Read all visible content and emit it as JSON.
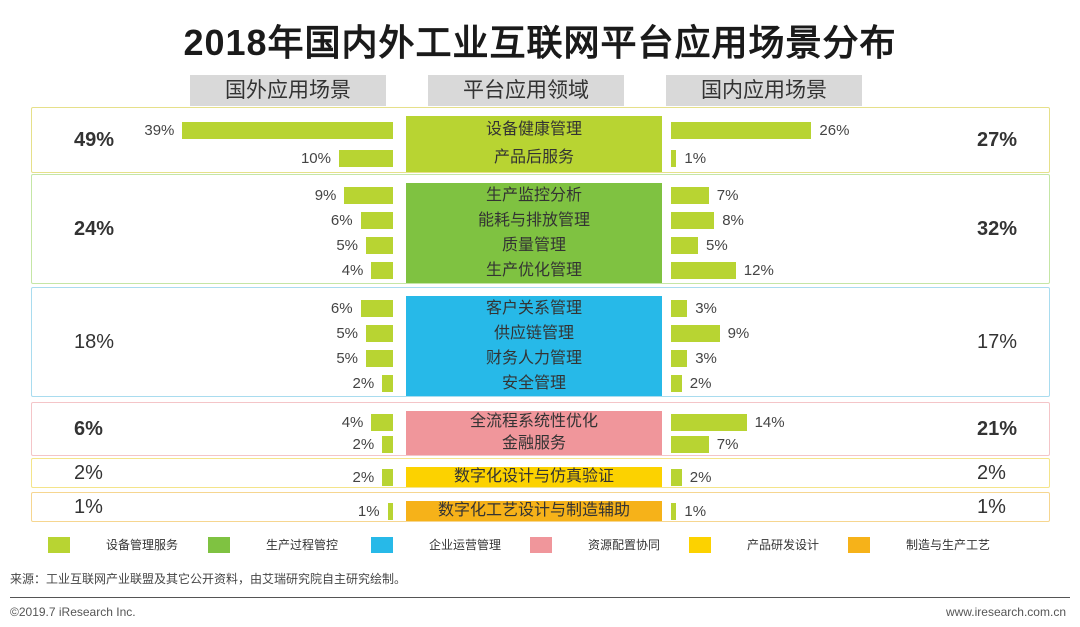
{
  "title": "2018年国内外工业互联网平台应用场景分布",
  "headers": {
    "left": "国外应用场景",
    "center": "平台应用领域",
    "right": "国内应用场景"
  },
  "legend": [
    {
      "label": "设备管理服务",
      "color": "#b8d432"
    },
    {
      "label": "生产过程管控",
      "color": "#7fc241"
    },
    {
      "label": "企业运营管理",
      "color": "#27b9e8"
    },
    {
      "label": "资源配置协同",
      "color": "#f0969b"
    },
    {
      "label": "产品研发设计",
      "color": "#fcd200"
    },
    {
      "label": "制造与生产工艺",
      "color": "#f6b219"
    }
  ],
  "chart_data": {
    "type": "bar",
    "title": "2018年国内外工业互联网平台应用场景分布",
    "bar_color": "#b8d432",
    "groups": [
      {
        "name": "设备管理服务",
        "foreign_total": "49%",
        "domestic_total": "27%",
        "color": "#b8d432",
        "border": "#e6e08a",
        "items": [
          {
            "label": "设备健康管理",
            "foreign": 39,
            "domestic": 26
          },
          {
            "label": "产品后服务",
            "foreign": 10,
            "domestic": 1
          }
        ]
      },
      {
        "name": "生产过程管控",
        "foreign_total": "24%",
        "domestic_total": "32%",
        "color": "#7fc241",
        "border": "#c5e6a6",
        "items": [
          {
            "label": "生产监控分析",
            "foreign": 9,
            "domestic": 7
          },
          {
            "label": "能耗与排放管理",
            "foreign": 6,
            "domestic": 8
          },
          {
            "label": "质量管理",
            "foreign": 5,
            "domestic": 5
          },
          {
            "label": "生产优化管理",
            "foreign": 4,
            "domestic": 12
          }
        ]
      },
      {
        "name": "企业运营管理",
        "foreign_total": "18%",
        "domestic_total": "17%",
        "color": "#27b9e8",
        "border": "#a9dcef",
        "items": [
          {
            "label": "客户关系管理",
            "foreign": 6,
            "domestic": 3
          },
          {
            "label": "供应链管理",
            "foreign": 5,
            "domestic": 9
          },
          {
            "label": "财务人力管理",
            "foreign": 5,
            "domestic": 3
          },
          {
            "label": "安全管理",
            "foreign": 2,
            "domestic": 2
          }
        ]
      },
      {
        "name": "资源配置协同",
        "foreign_total": "6%",
        "domestic_total": "21%",
        "color": "#f0969b",
        "border": "#f4c5c8",
        "items": [
          {
            "label": "全流程系统性优化",
            "foreign": 4,
            "domestic": 14
          },
          {
            "label": "金融服务",
            "foreign": 2,
            "domestic": 7
          }
        ]
      },
      {
        "name": "产品研发设计",
        "foreign_total": "2%",
        "domestic_total": "2%",
        "color": "#fcd200",
        "border": "#f4e48a",
        "items": [
          {
            "label": "数字化设计与仿真验证",
            "foreign": 2,
            "domestic": 2
          }
        ]
      },
      {
        "name": "制造与生产工艺",
        "foreign_total": "1%",
        "domestic_total": "1%",
        "color": "#f6b219",
        "border": "#f6d690",
        "items": [
          {
            "label": "数字化工艺设计与制造辅助",
            "foreign": 1,
            "domestic": 1
          }
        ]
      }
    ]
  },
  "source": "来源：工业互联网产业联盟及其它公开资料，由艾瑞研究院自主研究绘制。",
  "footer_left": "©2019.7 iResearch Inc.",
  "footer_right": "www.iresearch.com.cn"
}
